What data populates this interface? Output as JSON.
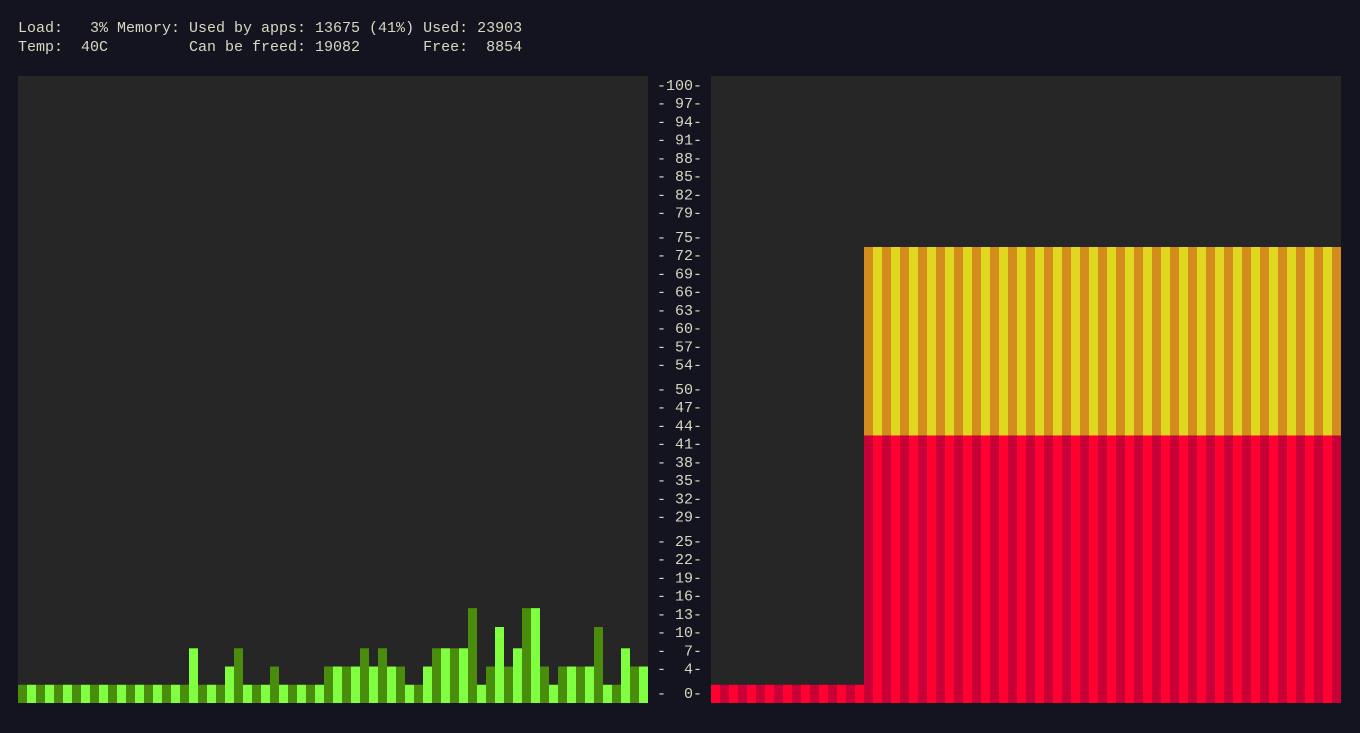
{
  "header": {
    "lines": [
      "Load:   3% Memory: Used by apps: 13675 (41%) Used: 23903",
      "Temp:  40C         Can be freed: 19082       Free:  8854"
    ]
  },
  "chart_data": [
    {
      "type": "bar",
      "colors": [
        "#4a8c0c",
        "#80ff40"
      ],
      "values": [
        3,
        3,
        3,
        3,
        3,
        3,
        3,
        3,
        3,
        3,
        3,
        3,
        3,
        3,
        3,
        3,
        3,
        3,
        3,
        9,
        3,
        3,
        3,
        6,
        9,
        3,
        3,
        3,
        6,
        3,
        3,
        3,
        3,
        3,
        6,
        6,
        6,
        6,
        9,
        6,
        9,
        6,
        6,
        3,
        3,
        6,
        9,
        9,
        9,
        9,
        15.6,
        3,
        6,
        12.5,
        6,
        9,
        15.6,
        15.6,
        6,
        3,
        6,
        6,
        6,
        6,
        12.5,
        3,
        3,
        9,
        6,
        6
      ],
      "ylim": [
        0,
        100
      ],
      "yticks": [
        {
          "value": 100,
          "label": "-100-"
        },
        {
          "value": 97,
          "label": "- 97-"
        },
        {
          "value": 94,
          "label": "- 94-"
        },
        {
          "value": 91,
          "label": "- 91-"
        },
        {
          "value": 88,
          "label": "- 88-"
        },
        {
          "value": 85,
          "label": "- 85-"
        },
        {
          "value": 82,
          "label": "- 82-"
        },
        {
          "value": 79,
          "label": "- 79-"
        },
        {
          "value": 75,
          "label": "- 75-"
        },
        {
          "value": 72,
          "label": "- 72-"
        },
        {
          "value": 69,
          "label": "- 69-"
        },
        {
          "value": 66,
          "label": "- 66-"
        },
        {
          "value": 63,
          "label": "- 63-"
        },
        {
          "value": 60,
          "label": "- 60-"
        },
        {
          "value": 57,
          "label": "- 57-"
        },
        {
          "value": 54,
          "label": "- 54-"
        },
        {
          "value": 50,
          "label": "- 50-"
        },
        {
          "value": 47,
          "label": "- 47-"
        },
        {
          "value": 44,
          "label": "- 44-"
        },
        {
          "value": 41,
          "label": "- 41-"
        },
        {
          "value": 38,
          "label": "- 38-"
        },
        {
          "value": 35,
          "label": "- 35-"
        },
        {
          "value": 32,
          "label": "- 32-"
        },
        {
          "value": 29,
          "label": "- 29-"
        },
        {
          "value": 25,
          "label": "- 25-"
        },
        {
          "value": 22,
          "label": "- 22-"
        },
        {
          "value": 19,
          "label": "- 19-"
        },
        {
          "value": 16,
          "label": "- 16-"
        },
        {
          "value": 13,
          "label": "- 13-"
        },
        {
          "value": 10,
          "label": "- 10-"
        },
        {
          "value": 7,
          "label": "-  7-"
        },
        {
          "value": 4,
          "label": "-  4-"
        },
        {
          "value": 0,
          "label": "-  0-"
        }
      ]
    },
    {
      "type": "stacked_bar",
      "ylim": [
        0,
        100
      ],
      "series": [
        {
          "colors": [
            "#ff0030",
            "#c80038"
          ],
          "values": [
            3,
            3,
            3,
            3,
            3,
            3,
            3,
            3,
            3,
            3,
            3,
            3,
            3,
            3,
            3,
            3,
            3,
            44,
            44,
            44,
            44,
            44,
            44,
            44,
            44,
            44,
            44,
            44,
            44,
            44,
            44,
            44,
            44,
            44,
            44,
            44,
            44,
            44,
            44,
            44,
            44,
            44,
            44,
            44,
            44,
            44,
            44,
            44,
            44,
            44,
            44,
            44,
            44,
            44,
            44,
            44,
            44,
            44,
            44,
            44,
            44,
            44,
            44,
            44,
            44,
            44,
            44,
            44,
            44,
            44
          ]
        },
        {
          "colors": [
            "#e0d820",
            "#d48c1c"
          ],
          "values": [
            0,
            0,
            0,
            0,
            0,
            0,
            0,
            0,
            0,
            0,
            0,
            0,
            0,
            0,
            0,
            0,
            0,
            31,
            31,
            31,
            31,
            31,
            31,
            31,
            31,
            31,
            31,
            31,
            31,
            31,
            31,
            31,
            31,
            31,
            31,
            31,
            31,
            31,
            31,
            31,
            31,
            31,
            31,
            31,
            31,
            31,
            31,
            31,
            31,
            31,
            31,
            31,
            31,
            31,
            31,
            31,
            31,
            31,
            31,
            31,
            31,
            31,
            31,
            31,
            31,
            31,
            31,
            31,
            31,
            31
          ]
        }
      ]
    }
  ]
}
